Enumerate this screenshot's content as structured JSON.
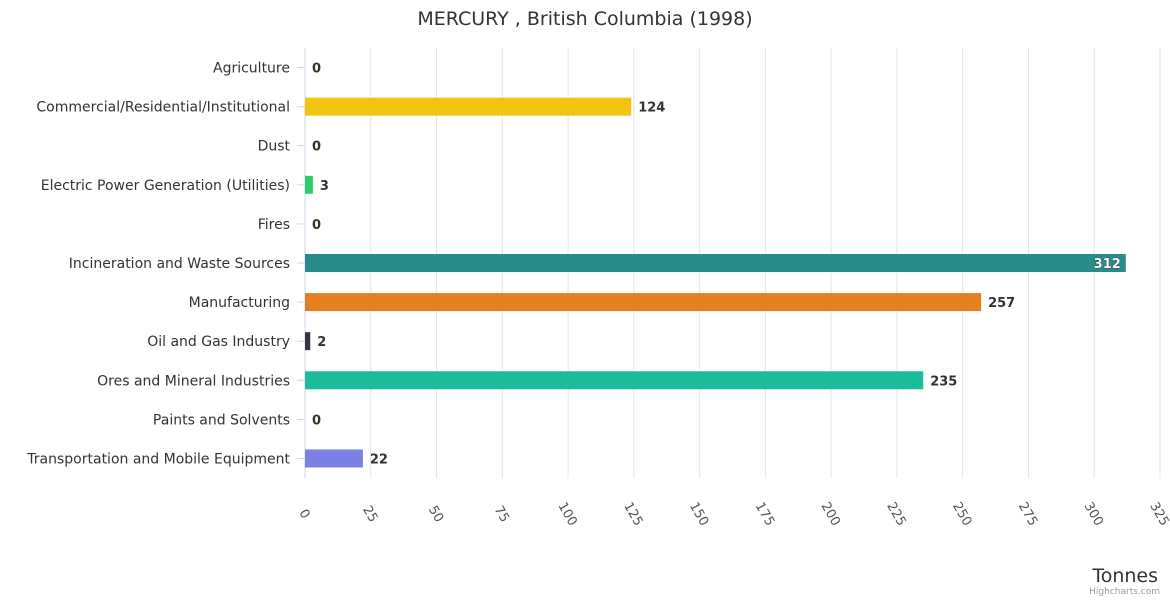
{
  "chart_data": {
    "type": "bar",
    "orientation": "horizontal",
    "title": "MERCURY , British Columbia (1998)",
    "xlabel": "Tonnes",
    "categories": [
      "Agriculture",
      "Commercial/Residential/Institutional",
      "Dust",
      "Electric Power Generation (Utilities)",
      "Fires",
      "Incineration and Waste Sources",
      "Manufacturing",
      "Oil and Gas Industry",
      "Ores and Mineral Industries",
      "Paints and Solvents",
      "Transportation and Mobile Equipment"
    ],
    "values": [
      0,
      124,
      0,
      3,
      0,
      312,
      257,
      2,
      235,
      0,
      22
    ],
    "data_labels": [
      "0",
      "124",
      "0",
      "3",
      "0",
      "312",
      "257",
      "2",
      "235",
      "0",
      "22"
    ],
    "colors": [
      "#7cb5ec",
      "#f1c40f",
      "#2c3e50",
      "#2ecc71",
      "#9b59b6",
      "#2a8c8a",
      "#e67e22",
      "#34353f",
      "#1abc9c",
      "#e74c3c",
      "#7b7fe6"
    ],
    "xlim": [
      0,
      325
    ],
    "ticks": [
      0,
      25,
      50,
      75,
      100,
      125,
      150,
      175,
      200,
      225,
      250,
      275,
      300,
      325
    ],
    "tick_labels": [
      "0",
      "25",
      "50",
      "75",
      "100",
      "125",
      "150",
      "175",
      "200",
      "225",
      "250",
      "275",
      "300",
      "325"
    ],
    "grid": true,
    "legend": "none"
  },
  "credits": "Highcharts.com"
}
